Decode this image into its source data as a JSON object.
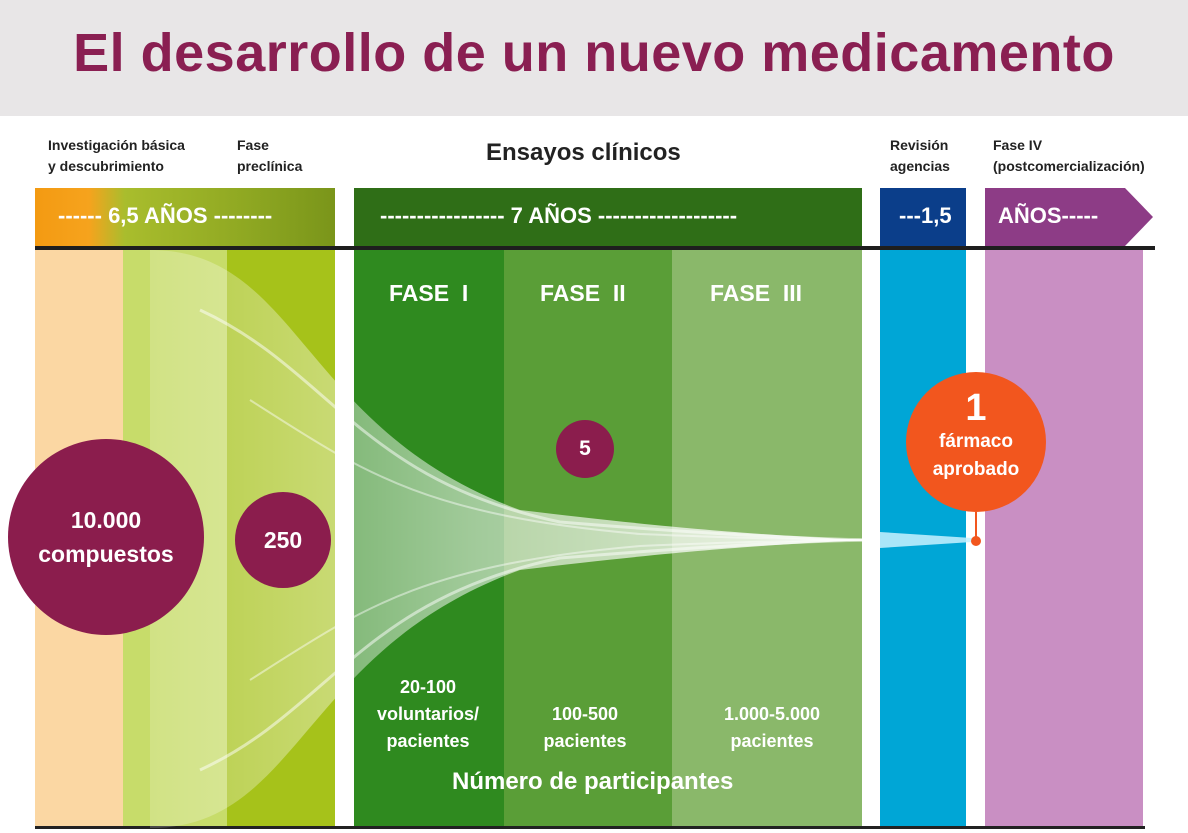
{
  "title": "El desarrollo de un nuevo medicamento",
  "headers": {
    "basic_research": "Investigación básica\ny descubrimiento",
    "preclinical": "Fase\npreclínica",
    "clinical_trials": "Ensayos clínicos",
    "agency_review": "Revisión\nagencias",
    "phase_iv": "Fase IV\n(postcomercialización)"
  },
  "timeline": {
    "discovery": "------ 6,5 AÑOS --------",
    "clinical": "----------------- 7 AÑOS -------------------",
    "review": "---1,5",
    "post": "AÑOS-----"
  },
  "phases": {
    "phase1": "FASE  I",
    "phase2": "FASE  II",
    "phase3": "FASE  III"
  },
  "counts": {
    "compounds": "10.000\ncompuestos",
    "preclinical": "250",
    "clinical": "5",
    "approved_number": "1",
    "approved_label": "fármaco\naprobado"
  },
  "participants": {
    "phase1": "20-100\nvoluntarios/\npacientes",
    "phase2": "100-500\npacientes",
    "phase3": "1.000-5.000\npacientes",
    "label": "Número de participantes"
  },
  "colors": {
    "title": "#8a1f52",
    "circle": "#8b1d4d",
    "approved": "#f2561e",
    "discovery": "#f4a623",
    "clinical": "#2f7d1c",
    "review": "#00a0d2",
    "post": "#a8539c"
  }
}
